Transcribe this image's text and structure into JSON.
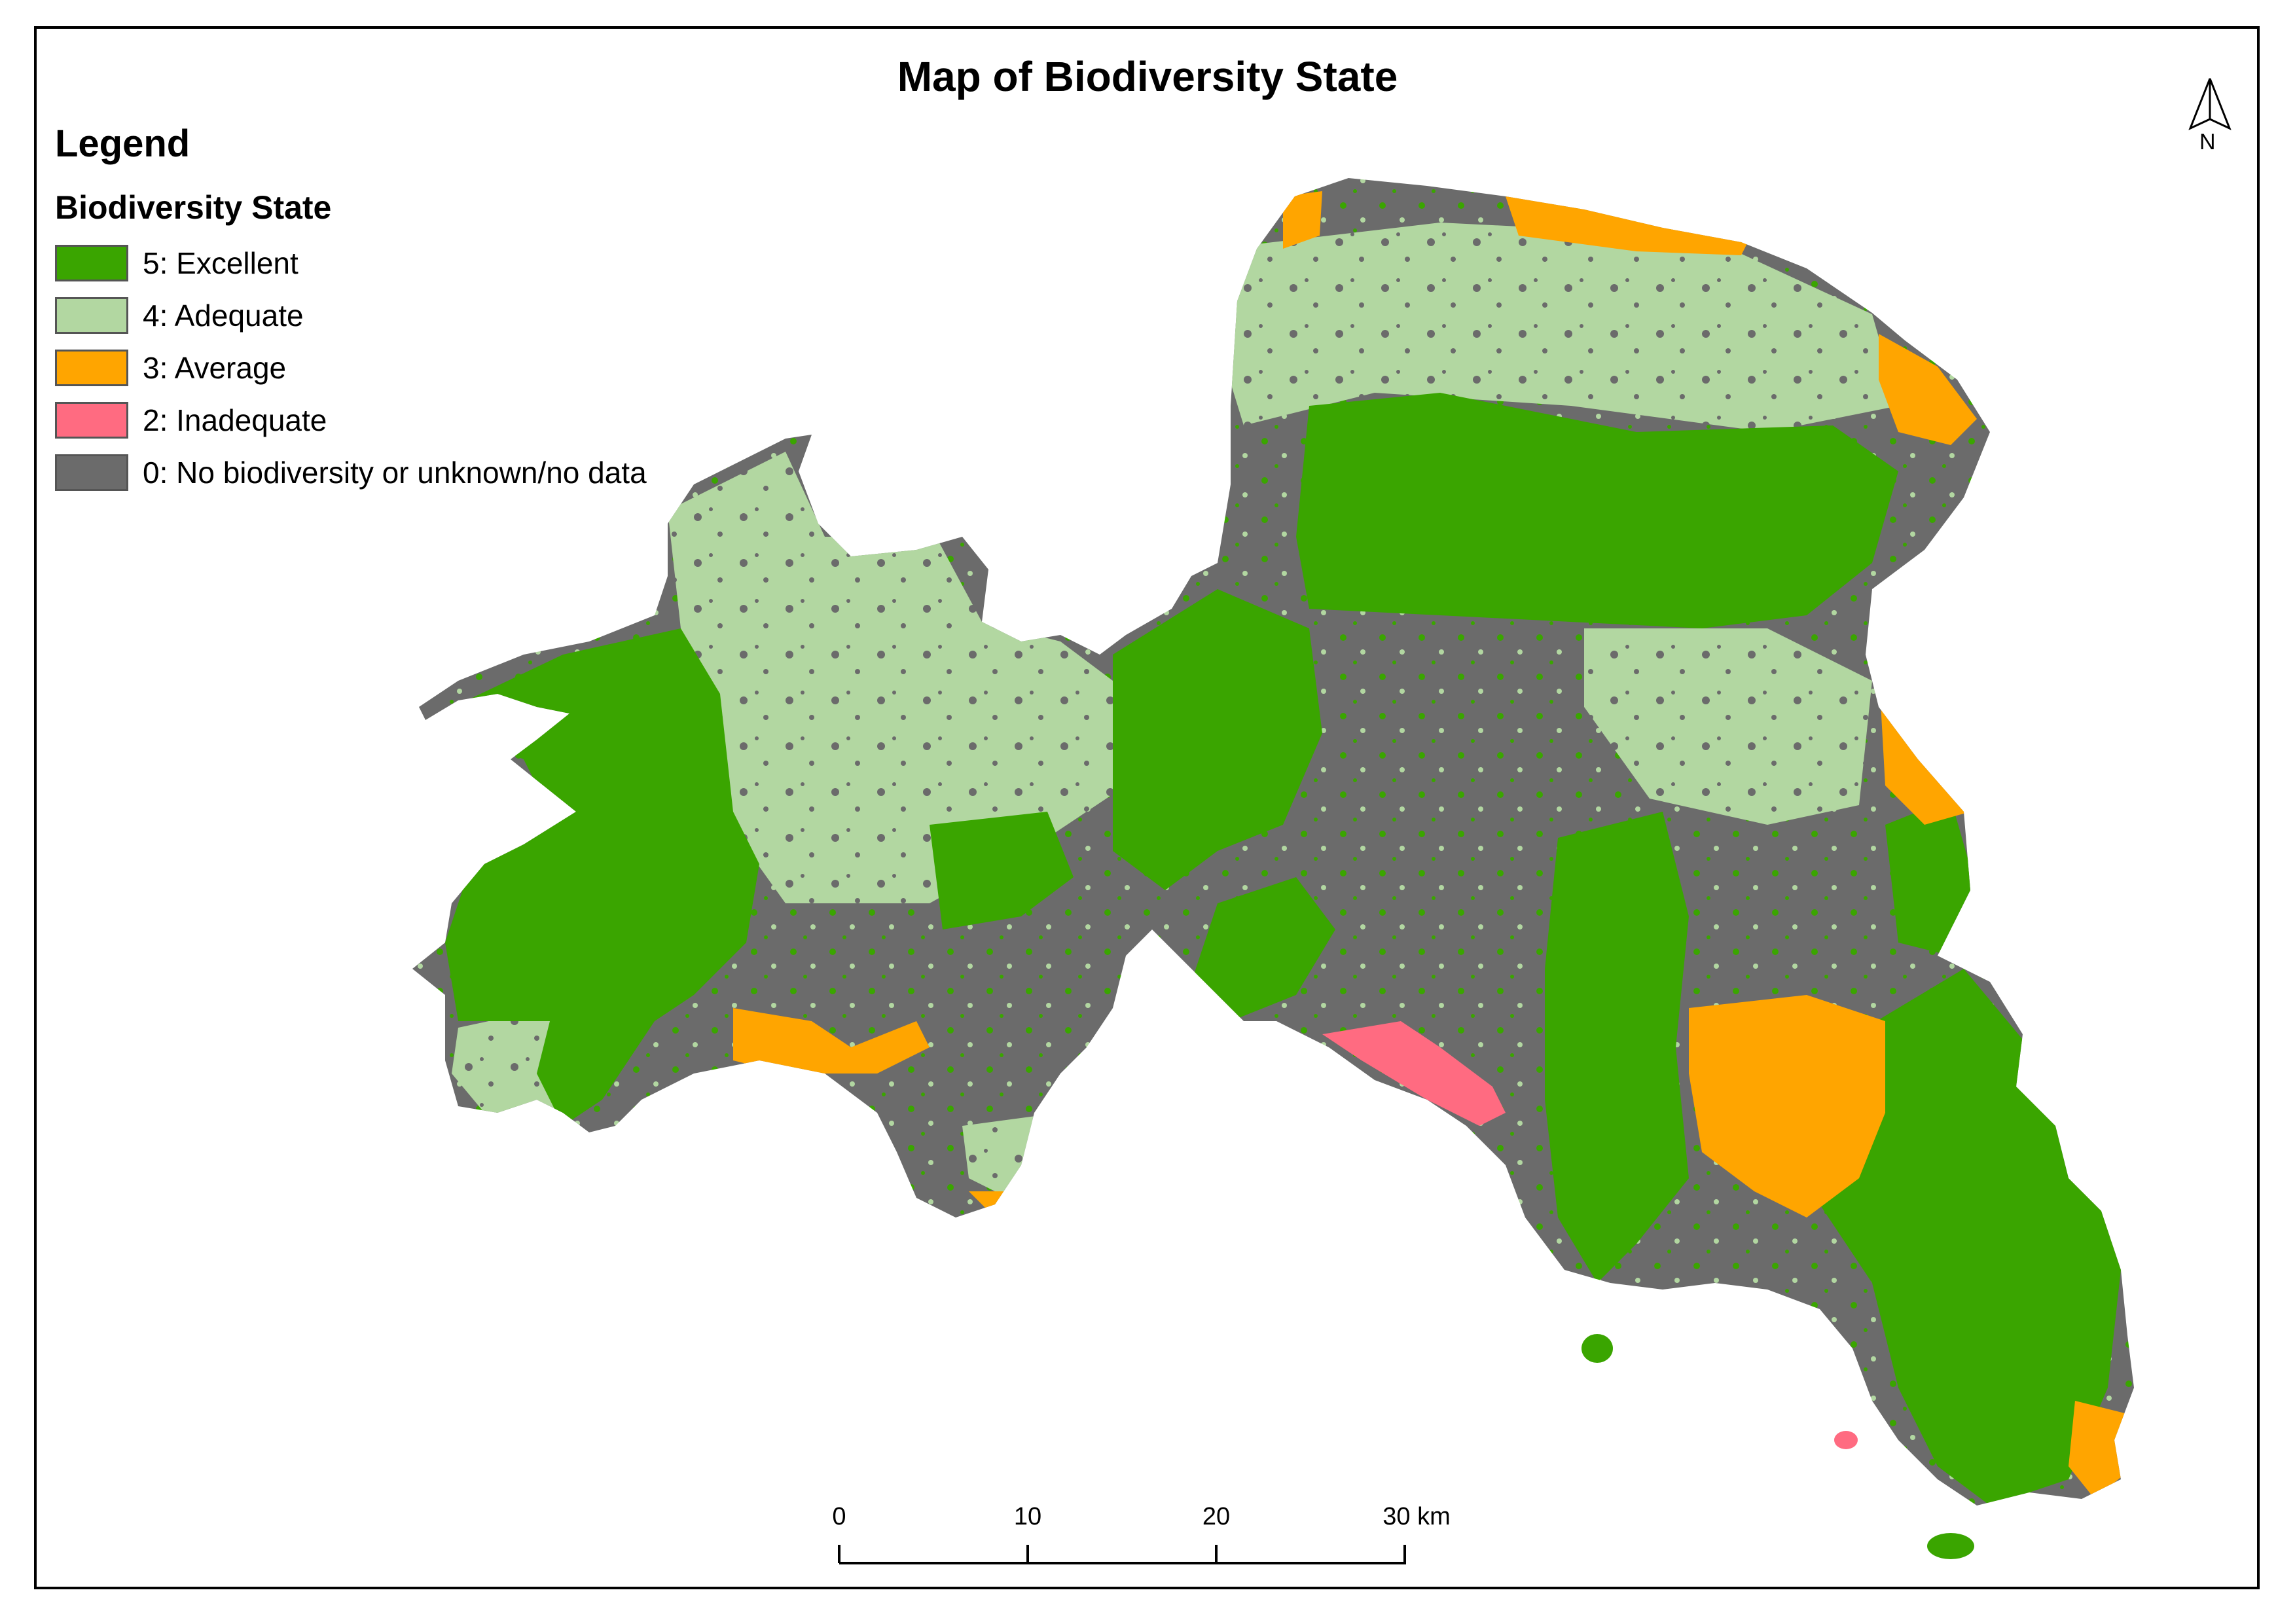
{
  "map": {
    "title": "Map of Biodiversity State",
    "legend": {
      "heading": "Legend",
      "subheading": "Biodiversity State",
      "items": [
        {
          "label": "5: Excellent",
          "color": "#3aa500"
        },
        {
          "label": "4: Adequate",
          "color": "#b2d7a1"
        },
        {
          "label": "3: Average",
          "color": "#ffa500"
        },
        {
          "label": "2: Inadequate",
          "color": "#ff6b81"
        },
        {
          "label": "0: No biodiversity or unknown/no data",
          "color": "#6b6b6b"
        }
      ]
    },
    "north_arrow": {
      "label": "N"
    },
    "scale_bar": {
      "ticks": [
        "0",
        "10",
        "20",
        "30 km"
      ]
    }
  }
}
